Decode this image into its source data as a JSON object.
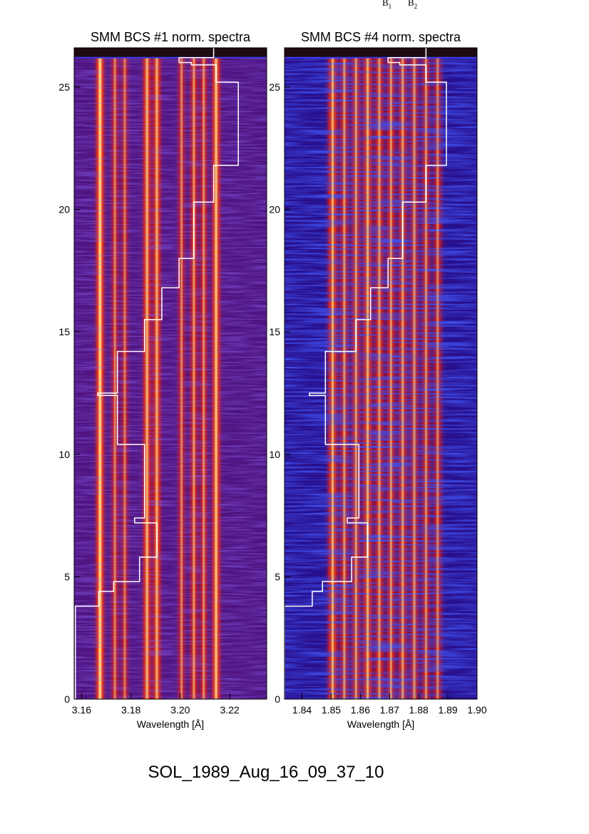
{
  "caption": "SOL_1989_Aug_16_09_37_10",
  "top_labels": [
    {
      "base": "B",
      "sub": "1"
    },
    {
      "base": "B",
      "sub": "2"
    }
  ],
  "colors": {
    "background_band": "#1e0a12",
    "noise_floor": "#3a1bb0",
    "line_core": "#ffd98a",
    "trace": "#ffffff"
  },
  "chart_data": [
    {
      "type": "heatmap",
      "title": "SMM BCS #1 norm. spectra",
      "xlabel": "Wavelength [Å]",
      "ylabel": "",
      "xlim": [
        3.157,
        3.235
      ],
      "ylim": [
        0,
        26.6
      ],
      "xticks": [
        3.16,
        3.18,
        3.2,
        3.22
      ],
      "xtick_labels": [
        "3.16",
        "3.18",
        "3.20",
        "3.22"
      ],
      "yticks": [
        0,
        5,
        10,
        15,
        20,
        25
      ],
      "ytick_labels": [
        "0",
        "5",
        "10",
        "15",
        "20",
        "25"
      ],
      "line_wavelengths": [
        3.1675,
        3.1735,
        3.1775,
        3.1865,
        3.1905,
        3.2005,
        3.2055,
        3.2095,
        3.2145
      ],
      "line_strengths": [
        1.0,
        0.45,
        0.4,
        0.8,
        0.75,
        0.45,
        0.55,
        0.5,
        0.9
      ],
      "trace": [
        {
          "x": 3.1575,
          "y0": 0.0,
          "y1": 3.8
        },
        {
          "x": 3.167,
          "y0": 3.8,
          "y1": 4.4
        },
        {
          "x": 3.173,
          "y0": 4.4,
          "y1": 4.8
        },
        {
          "x": 3.1835,
          "y0": 4.8,
          "y1": 5.8
        },
        {
          "x": 3.1905,
          "y0": 5.8,
          "y1": 7.2
        },
        {
          "x": 3.1815,
          "y0": 7.2,
          "y1": 7.4
        },
        {
          "x": 3.1855,
          "y0": 7.4,
          "y1": 10.4
        },
        {
          "x": 3.1745,
          "y0": 10.4,
          "y1": 12.4
        },
        {
          "x": 3.1665,
          "y0": 12.4,
          "y1": 12.5
        },
        {
          "x": 3.1745,
          "y0": 12.5,
          "y1": 14.2
        },
        {
          "x": 3.1855,
          "y0": 14.2,
          "y1": 15.5
        },
        {
          "x": 3.1925,
          "y0": 15.5,
          "y1": 16.8
        },
        {
          "x": 3.1995,
          "y0": 16.8,
          "y1": 18.0
        },
        {
          "x": 3.2055,
          "y0": 18.0,
          "y1": 20.3
        },
        {
          "x": 3.2135,
          "y0": 20.3,
          "y1": 21.8
        },
        {
          "x": 3.2235,
          "y0": 21.8,
          "y1": 25.2
        },
        {
          "x": 3.2145,
          "y0": 25.2,
          "y1": 25.9
        },
        {
          "x": 3.2045,
          "y0": 25.9,
          "y1": 26.0
        },
        {
          "x": 3.1995,
          "y0": 26.0,
          "y1": 26.2
        },
        {
          "x": 3.2135,
          "y0": 26.2,
          "y1": 26.6
        }
      ]
    },
    {
      "type": "heatmap",
      "title": "SMM BCS #4 norm. spectra",
      "xlabel": "Wavelength [Å]",
      "ylabel": "",
      "xlim": [
        1.834,
        1.9
      ],
      "ylim": [
        0,
        26.6
      ],
      "xticks": [
        1.84,
        1.85,
        1.86,
        1.87,
        1.88,
        1.89,
        1.9
      ],
      "xtick_labels": [
        "1.84",
        "1.85",
        "1.86",
        "1.87",
        "1.88",
        "1.89",
        "1.90"
      ],
      "yticks": [
        0,
        5,
        10,
        15,
        20,
        25
      ],
      "ytick_labels": [
        "0",
        "5",
        "10",
        "15",
        "20",
        "25"
      ],
      "line_wavelengths": [
        1.8505,
        1.8545,
        1.8585,
        1.8625,
        1.8665,
        1.8705,
        1.8745,
        1.8785,
        1.8825,
        1.8865
      ],
      "line_strengths": [
        0.75,
        0.55,
        0.6,
        0.75,
        0.6,
        0.55,
        0.6,
        0.55,
        0.5,
        0.45
      ],
      "trace": [
        {
          "x": 1.834,
          "y0": 0.0,
          "y1": 3.8
        },
        {
          "x": 1.8435,
          "y0": 3.8,
          "y1": 4.4
        },
        {
          "x": 1.847,
          "y0": 4.4,
          "y1": 4.8
        },
        {
          "x": 1.857,
          "y0": 4.8,
          "y1": 5.8
        },
        {
          "x": 1.8625,
          "y0": 5.8,
          "y1": 7.2
        },
        {
          "x": 1.8555,
          "y0": 7.2,
          "y1": 7.4
        },
        {
          "x": 1.8595,
          "y0": 7.4,
          "y1": 10.4
        },
        {
          "x": 1.848,
          "y0": 10.4,
          "y1": 12.4
        },
        {
          "x": 1.8425,
          "y0": 12.4,
          "y1": 12.5
        },
        {
          "x": 1.848,
          "y0": 12.5,
          "y1": 14.2
        },
        {
          "x": 1.8585,
          "y0": 14.2,
          "y1": 15.5
        },
        {
          "x": 1.8635,
          "y0": 15.5,
          "y1": 16.8
        },
        {
          "x": 1.8695,
          "y0": 16.8,
          "y1": 18.0
        },
        {
          "x": 1.8745,
          "y0": 18.0,
          "y1": 20.3
        },
        {
          "x": 1.8825,
          "y0": 20.3,
          "y1": 21.8
        },
        {
          "x": 1.8895,
          "y0": 21.8,
          "y1": 25.2
        },
        {
          "x": 1.8825,
          "y0": 25.2,
          "y1": 25.9
        },
        {
          "x": 1.8735,
          "y0": 25.9,
          "y1": 26.0
        },
        {
          "x": 1.8695,
          "y0": 26.0,
          "y1": 26.2
        },
        {
          "x": 1.8825,
          "y0": 26.2,
          "y1": 26.6
        }
      ]
    }
  ]
}
